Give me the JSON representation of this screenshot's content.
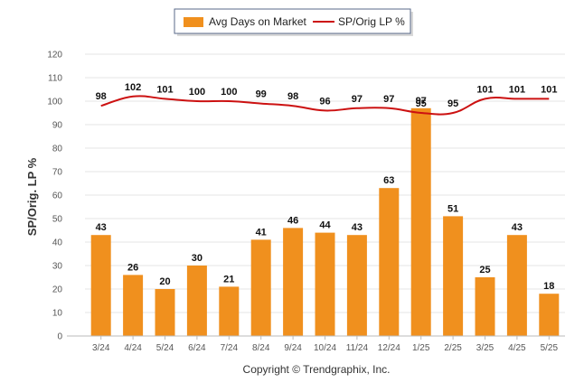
{
  "chart_data": {
    "type": "bar",
    "title": "",
    "xlabel": "",
    "ylabel": "SP/Orig. LP %",
    "ylim": [
      0,
      120
    ],
    "yticks": [
      0,
      10,
      20,
      30,
      40,
      50,
      60,
      70,
      80,
      90,
      100,
      110,
      120
    ],
    "categories": [
      "3/24",
      "4/24",
      "5/24",
      "6/24",
      "7/24",
      "8/24",
      "9/24",
      "10/24",
      "11/24",
      "12/24",
      "1/25",
      "2/25",
      "3/25",
      "4/25",
      "5/25"
    ],
    "series": [
      {
        "name": "Avg Days on Market",
        "type": "bar",
        "color": "#f0901e",
        "values": [
          43,
          26,
          20,
          30,
          21,
          41,
          46,
          44,
          43,
          63,
          97,
          51,
          25,
          43,
          18
        ]
      },
      {
        "name": "SP/Orig LP %",
        "type": "line",
        "color": "#cc1111",
        "values": [
          98,
          102,
          101,
          100,
          100,
          99,
          98,
          96,
          97,
          97,
          95,
          95,
          101,
          101,
          101
        ]
      }
    ],
    "grid": true,
    "legend_position": "top-center"
  },
  "footer": {
    "copyright": "Copyright © Trendgraphix, Inc."
  }
}
